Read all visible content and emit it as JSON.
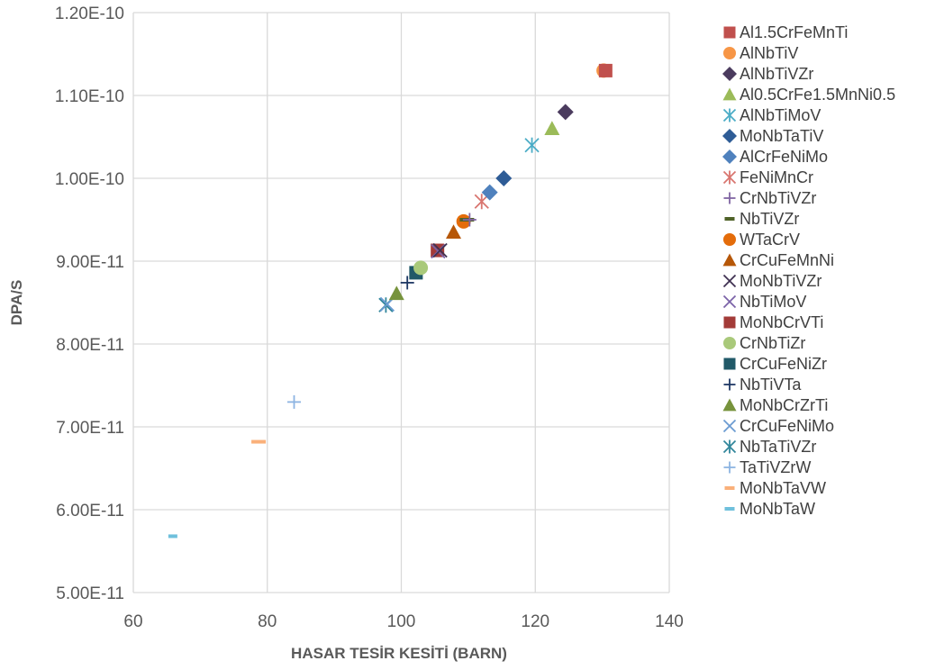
{
  "chart_data": {
    "type": "scatter",
    "xlabel": "HASAR TESİR KESİTİ (BARN)",
    "ylabel": "DPA/S",
    "xlim": [
      60,
      140
    ],
    "ylim": [
      5e-11,
      1.2e-10
    ],
    "x_ticks": [
      "60",
      "80",
      "100",
      "120",
      "140"
    ],
    "y_ticks": [
      "5.00E-11",
      "6.00E-11",
      "7.00E-11",
      "8.00E-11",
      "9.00E-11",
      "1.00E-10",
      "1.10E-10",
      "1.20E-10"
    ],
    "grid": true,
    "legend_position": "right",
    "series": [
      {
        "name": "Al1.5CrFeMnTi",
        "marker": "square",
        "color": "#c0504d",
        "x": 130.5,
        "y": 1.13e-10
      },
      {
        "name": "AlNbTiV",
        "marker": "circle",
        "color": "#f79646",
        "x": 130.2,
        "y": 1.13e-10
      },
      {
        "name": "AlNbTiVZr",
        "marker": "diamond",
        "color": "#4b3b5e",
        "x": 124.5,
        "y": 1.08e-10
      },
      {
        "name": "Al0.5CrFe1.5MnNi0.5",
        "marker": "triangle",
        "color": "#9bbb59",
        "x": 122.5,
        "y": 1.06e-10
      },
      {
        "name": "AlNbTiMoV",
        "marker": "asterisk",
        "color": "#4bacc6",
        "x": 119.5,
        "y": 1.04e-10
      },
      {
        "name": "MoNbTaTiV",
        "marker": "diamond",
        "color": "#2e5c96",
        "x": 115.3,
        "y": 1e-10
      },
      {
        "name": "AlCrFeNiMo",
        "marker": "diamond",
        "color": "#4f81bd",
        "x": 113.2,
        "y": 9.83e-11
      },
      {
        "name": "FeNiMnCr",
        "marker": "asterisk",
        "color": "#d9756f",
        "x": 112.0,
        "y": 9.72e-11
      },
      {
        "name": "CrNbTiVZr",
        "marker": "plus",
        "color": "#8064a2",
        "x": 110.2,
        "y": 9.5e-11
      },
      {
        "name": "NbTiVZr",
        "marker": "dash",
        "color": "#4f6228",
        "x": 109.8,
        "y": 9.5e-11
      },
      {
        "name": "WTaCrV",
        "marker": "circle",
        "color": "#e46c0a",
        "x": 109.3,
        "y": 9.48e-11
      },
      {
        "name": "CrCuFeMnNi",
        "marker": "triangle",
        "color": "#b65708",
        "x": 107.8,
        "y": 9.35e-11
      },
      {
        "name": "MoNbTiVZr",
        "marker": "x",
        "color": "#3f3151",
        "x": 105.8,
        "y": 9.13e-11
      },
      {
        "name": "NbTiMoV",
        "marker": "x",
        "color": "#7b63a8",
        "x": 105.5,
        "y": 9.12e-11
      },
      {
        "name": "MoNbCrVTi",
        "marker": "square",
        "color": "#a33b38",
        "x": 105.4,
        "y": 9.13e-11
      },
      {
        "name": "CrNbTiZr",
        "marker": "circle",
        "color": "#a9c97a",
        "x": 102.9,
        "y": 8.92e-11
      },
      {
        "name": "CrCuFeNiZr",
        "marker": "square",
        "color": "#215968",
        "x": 102.2,
        "y": 8.86e-11
      },
      {
        "name": "NbTiVTa",
        "marker": "plus",
        "color": "#1f3864",
        "x": 100.9,
        "y": 8.74e-11
      },
      {
        "name": "MoNbCrZrTi",
        "marker": "triangle",
        "color": "#77933c",
        "x": 99.3,
        "y": 8.61e-11
      },
      {
        "name": "CrCuFeNiMo",
        "marker": "x",
        "color": "#6b9bd2",
        "x": 97.9,
        "y": 8.48e-11
      },
      {
        "name": "NbTaTiVZr",
        "marker": "asterisk",
        "color": "#31869b",
        "x": 97.7,
        "y": 8.47e-11
      },
      {
        "name": "TaTiVZrW",
        "marker": "plus",
        "color": "#8db4e2",
        "x": 84.0,
        "y": 7.3e-11
      },
      {
        "name": "MoNbTaVW",
        "marker": "dash",
        "color": "#fab07a",
        "x": 78.7,
        "y": 6.82e-11
      },
      {
        "name": "MoNbTaW",
        "marker": "dash",
        "color": "#6fc0dc",
        "x": 65.9,
        "y": 5.68e-11
      }
    ]
  }
}
